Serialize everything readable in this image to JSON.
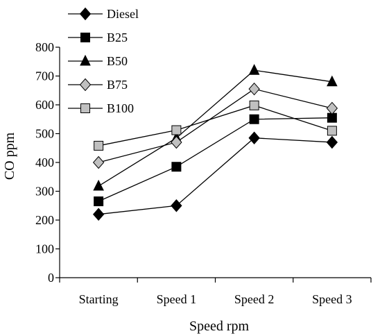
{
  "chart_data": {
    "type": "line",
    "categories": [
      "Starting",
      "Speed 1",
      "Speed 2",
      "Speed 3"
    ],
    "series": [
      {
        "name": "Diesel",
        "marker": "diamond",
        "color": "#000000",
        "values": [
          220,
          250,
          485,
          470
        ]
      },
      {
        "name": "B25",
        "marker": "square",
        "color": "#000000",
        "values": [
          265,
          385,
          550,
          555
        ]
      },
      {
        "name": "B50",
        "marker": "triangle",
        "color": "#000000",
        "values": [
          318,
          485,
          720,
          680
        ]
      },
      {
        "name": "B75",
        "marker": "diamond",
        "color": "#c0c0c0",
        "values": [
          400,
          470,
          655,
          588
        ]
      },
      {
        "name": "B100",
        "marker": "square",
        "color": "#c0c0c0",
        "values": [
          458,
          512,
          598,
          510
        ]
      }
    ],
    "xlabel": "Speed rpm",
    "ylabel": "CO ppm",
    "ylim": [
      0,
      800
    ],
    "yticks": [
      0,
      100,
      200,
      300,
      400,
      500,
      600,
      700,
      800
    ],
    "grid": false,
    "legend": "top-left"
  }
}
